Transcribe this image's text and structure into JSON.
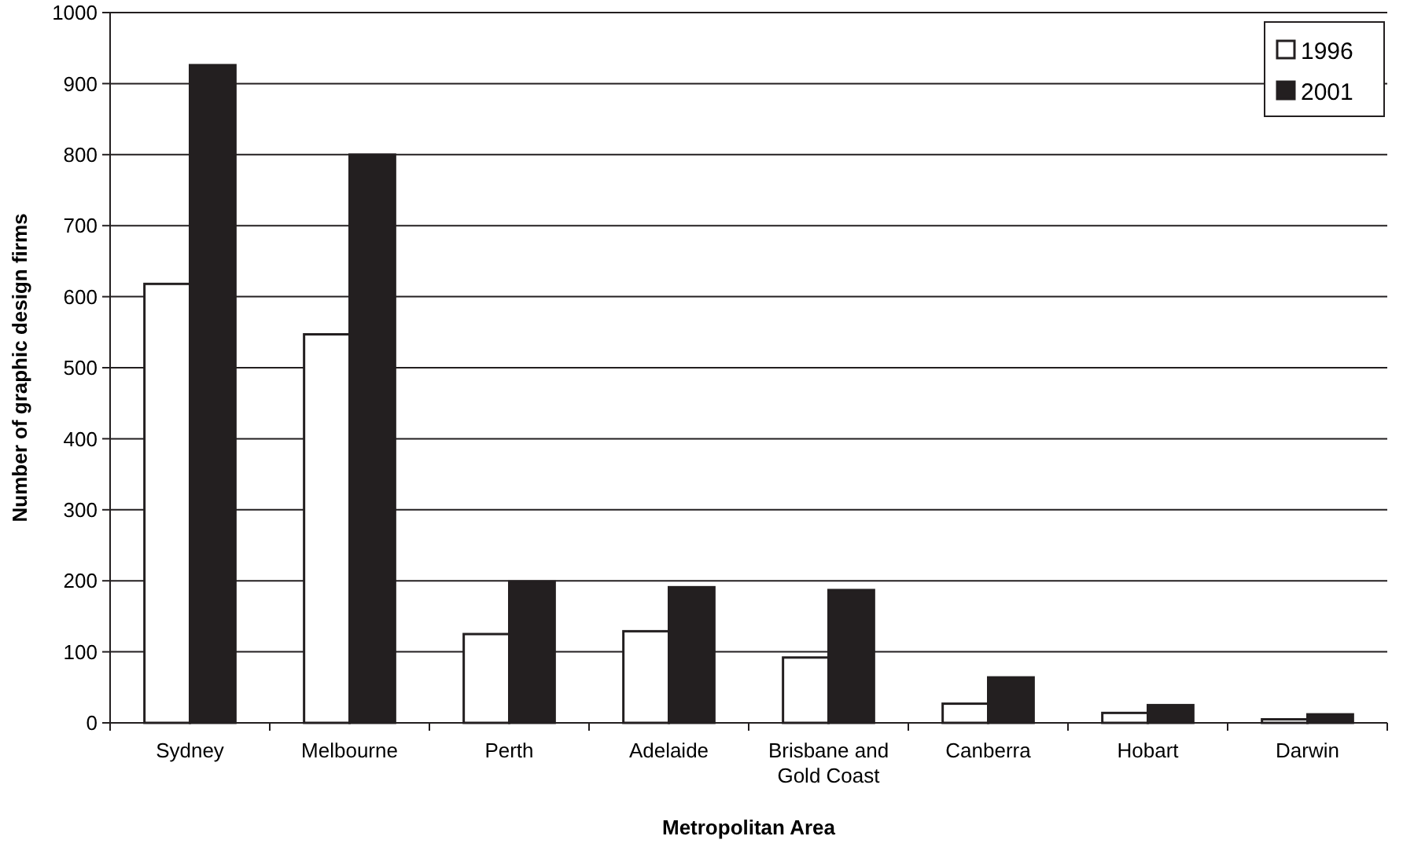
{
  "chart_data": {
    "type": "bar",
    "xlabel": "Metropolitan Area",
    "ylabel": "Number of graphic design firms",
    "categories": [
      "Sydney",
      "Melbourne",
      "Perth",
      "Adelaide",
      "Brisbane and Gold Coast",
      "Canberra",
      "Hobart",
      "Darwin"
    ],
    "series": [
      {
        "name": "1996",
        "color": "#ffffff",
        "values": [
          618,
          547,
          125,
          129,
          92,
          27,
          14,
          5
        ]
      },
      {
        "name": "2001",
        "color": "#231f20",
        "values": [
          926,
          800,
          199,
          191,
          187,
          64,
          25,
          12
        ]
      }
    ],
    "ylim": [
      0,
      1000
    ],
    "yticks": [
      0,
      100,
      200,
      300,
      400,
      500,
      600,
      700,
      800,
      900,
      1000
    ],
    "grid": "y",
    "legend": "top right"
  }
}
